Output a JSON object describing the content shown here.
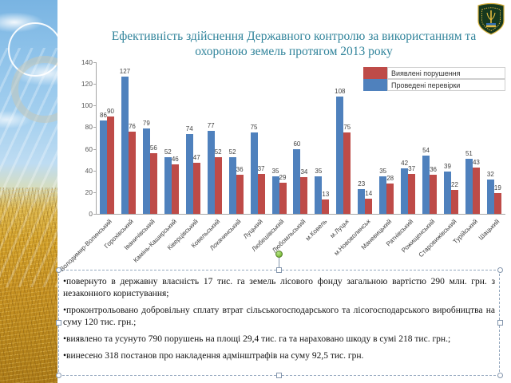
{
  "slide": {
    "title": {
      "line1": "Ефективність  здійснення  Державного  контролю  за  використанням  та",
      "line2": "охороною земель протягом 2013  року",
      "color": "#31849B"
    },
    "emblem": {
      "shield_color": "#16381E",
      "accent_color": "#D8B13C",
      "flag_blue": "#2E6DB4",
      "flag_yellow": "#E3BB3F"
    }
  },
  "chart_data": {
    "type": "bar",
    "title": "Ефективність здійснення Державного контролю за використанням та охороною земель протягом 2013 року",
    "categories": [
      "Володимир-Волинський",
      "Горохівський",
      "Іваничівський",
      "Камінь-Каширський",
      "Ківерцівський",
      "Ковельський",
      "Локачинський",
      "Луцький",
      "Любешівський",
      "Любомльський",
      "м.Ковель",
      "м.Луцьк",
      "м.Нововолинськ",
      "Маневицький",
      "Ратнівський",
      "Рожищенський",
      "Старовижівський",
      "Турійський",
      "Шацький"
    ],
    "series": [
      {
        "name": "Проведені перевірки",
        "color": "#4F81BD",
        "values": [
          86,
          127,
          79,
          52,
          74,
          77,
          52,
          75,
          35,
          60,
          35,
          108,
          23,
          35,
          42,
          54,
          39,
          51,
          32
        ]
      },
      {
        "name": "Виявлені порушення",
        "color": "#BE4B48",
        "values": [
          90,
          76,
          56,
          46,
          47,
          52,
          36,
          37,
          29,
          34,
          13,
          75,
          14,
          28,
          37,
          36,
          22,
          43,
          19
        ]
      }
    ],
    "legend": [
      {
        "label": "Виявлені порушення",
        "color": "#BE4B48"
      },
      {
        "label": "Проведені перевірки",
        "color": "#4F81BD"
      }
    ],
    "ylim": [
      0,
      140
    ],
    "yticks": [
      0,
      20,
      40,
      60,
      80,
      100,
      120,
      140
    ],
    "grid": false,
    "legend_position": "top-right",
    "xlabel": "",
    "ylabel": ""
  },
  "textbox": {
    "bullets": [
      "•повернуто  в  державну  власність  17  тис.  га земель  лісового  фонду  загальною  вартістю  290  млн. грн.  з незаконного  користування;",
      "•проконтрольовано   добровільну  сплату втрат сільськогосподарського  та лісогосподарського виробництва  на суму 120  тис. грн.;",
      "•виявлено  та усунуто 790  порушень  на площі  29,4  тис. га та нараховано  шкоду в сумі  218  тис. грн.;",
      "•винесено  318  постанов  про  накладення  адмінштрафів  на суму 92,5  тис.  грн."
    ]
  }
}
